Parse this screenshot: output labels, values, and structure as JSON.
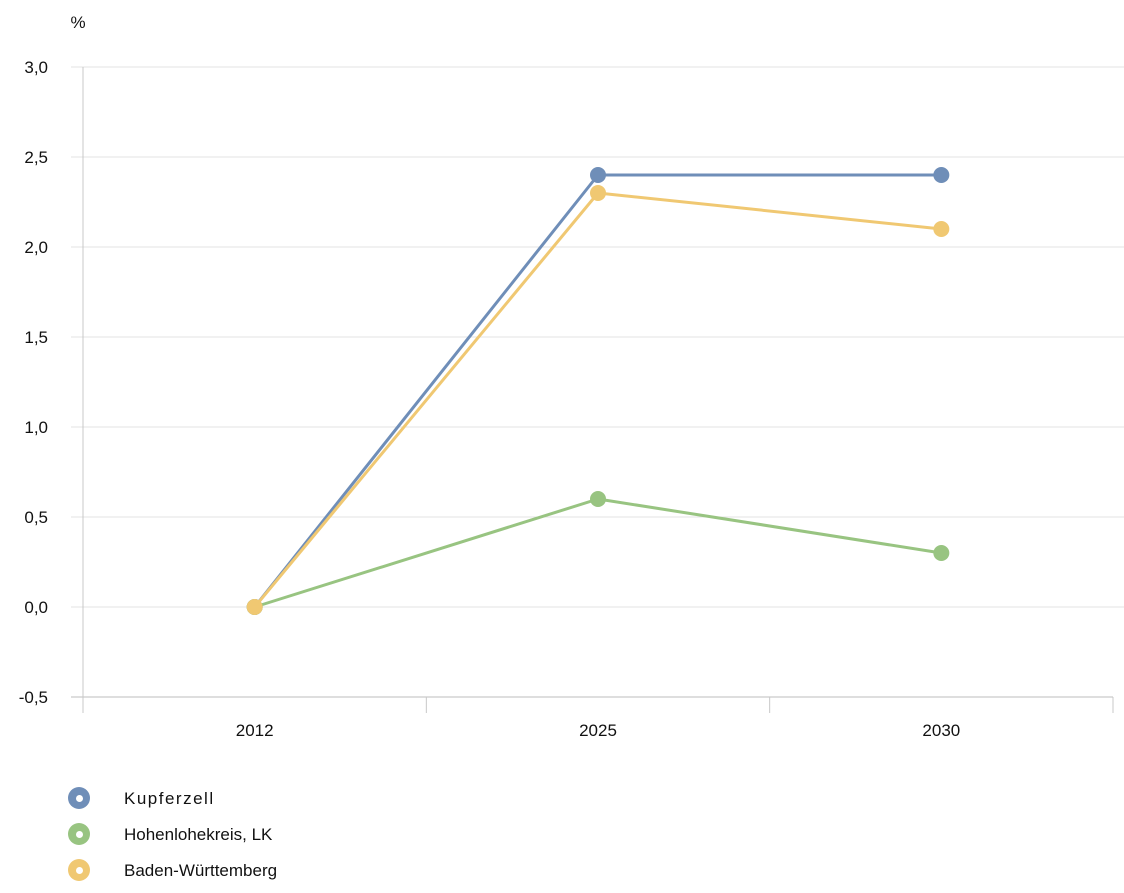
{
  "chart_data": {
    "type": "line",
    "unit_label": "%",
    "categories": [
      "2012",
      "2025",
      "2030"
    ],
    "ylim": [
      -0.5,
      3.0
    ],
    "yticks": [
      "-0,5",
      "0,0",
      "0,5",
      "1,0",
      "1,5",
      "2,0",
      "2,5",
      "3,0"
    ],
    "grid": true,
    "legend_position": "bottom-left",
    "series": [
      {
        "name": "Kupferzell",
        "color": "#6f8eb8",
        "values": [
          0.0,
          2.4,
          2.4
        ]
      },
      {
        "name": "Hohenlohekreis, LK",
        "color": "#98c481",
        "values": [
          0.0,
          0.6,
          0.3
        ]
      },
      {
        "name": "Baden-Württemberg",
        "color": "#f0c872",
        "values": [
          0.0,
          2.3,
          2.1
        ]
      }
    ]
  }
}
